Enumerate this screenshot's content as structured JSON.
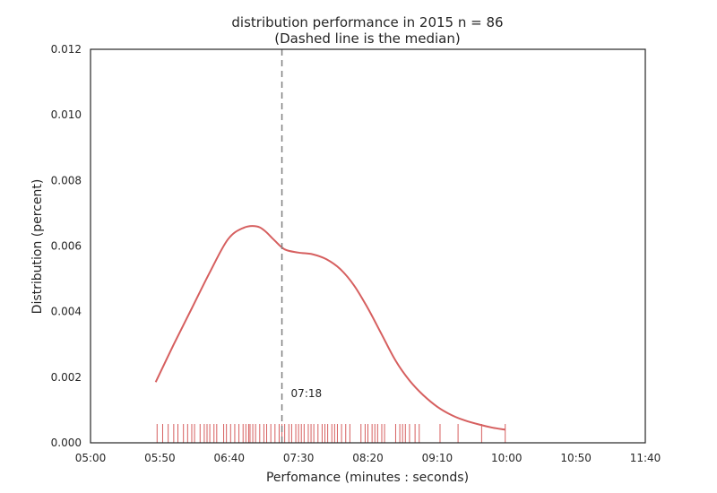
{
  "chart_data": {
    "type": "line",
    "title": "distribution performance in 2015 n = 86",
    "subtitle": "(Dashed line is the median)",
    "xlabel": "Perfomance (minutes : seconds)",
    "ylabel": "Distribution (percent)",
    "xlim": [
      300,
      700
    ],
    "ylim": [
      0,
      0.012
    ],
    "x_tick_labels": [
      "05:00",
      "05:50",
      "06:40",
      "07:30",
      "08:20",
      "09:10",
      "10:00",
      "10:50",
      "11:40"
    ],
    "x_tick_values": [
      300,
      350,
      400,
      450,
      500,
      550,
      600,
      650,
      700
    ],
    "y_tick_labels": [
      "0.000",
      "0.002",
      "0.004",
      "0.006",
      "0.008",
      "0.010",
      "0.012"
    ],
    "y_tick_values": [
      0,
      0.002,
      0.004,
      0.006,
      0.008,
      0.01,
      0.012
    ],
    "grid": false,
    "median": 438,
    "median_label": "07:18",
    "series": [
      {
        "color": "#d65f5f",
        "x": [
          347,
          360,
          373,
          386,
          399,
          410,
          420,
          426,
          432,
          440,
          450,
          460,
          470,
          480,
          490,
          500,
          510,
          520,
          530,
          540,
          550,
          560,
          570,
          580,
          590,
          599
        ],
        "y": [
          0.00185,
          0.003,
          0.0041,
          0.0052,
          0.0062,
          0.00655,
          0.0066,
          0.00645,
          0.0062,
          0.0059,
          0.0058,
          0.00575,
          0.0056,
          0.0053,
          0.0048,
          0.0041,
          0.0033,
          0.0025,
          0.0019,
          0.00145,
          0.0011,
          0.00085,
          0.00068,
          0.00056,
          0.00046,
          0.0004
        ]
      }
    ],
    "rug": {
      "color": "#d65f5f",
      "x": [
        348,
        352,
        356,
        360,
        363,
        367,
        370,
        373,
        375,
        379,
        382,
        384,
        386,
        389,
        391,
        396,
        398,
        401,
        404,
        407,
        410,
        412,
        414,
        415,
        417,
        419,
        422,
        425,
        427,
        430,
        433,
        436,
        438,
        440,
        443,
        445,
        448,
        450,
        452,
        454,
        457,
        459,
        461,
        464,
        467,
        469,
        471,
        474,
        476,
        478,
        481,
        484,
        487,
        495,
        498,
        500,
        503,
        505,
        507,
        510,
        512,
        520,
        523,
        525,
        527,
        530,
        534,
        537,
        552,
        565,
        582,
        599
      ]
    }
  }
}
